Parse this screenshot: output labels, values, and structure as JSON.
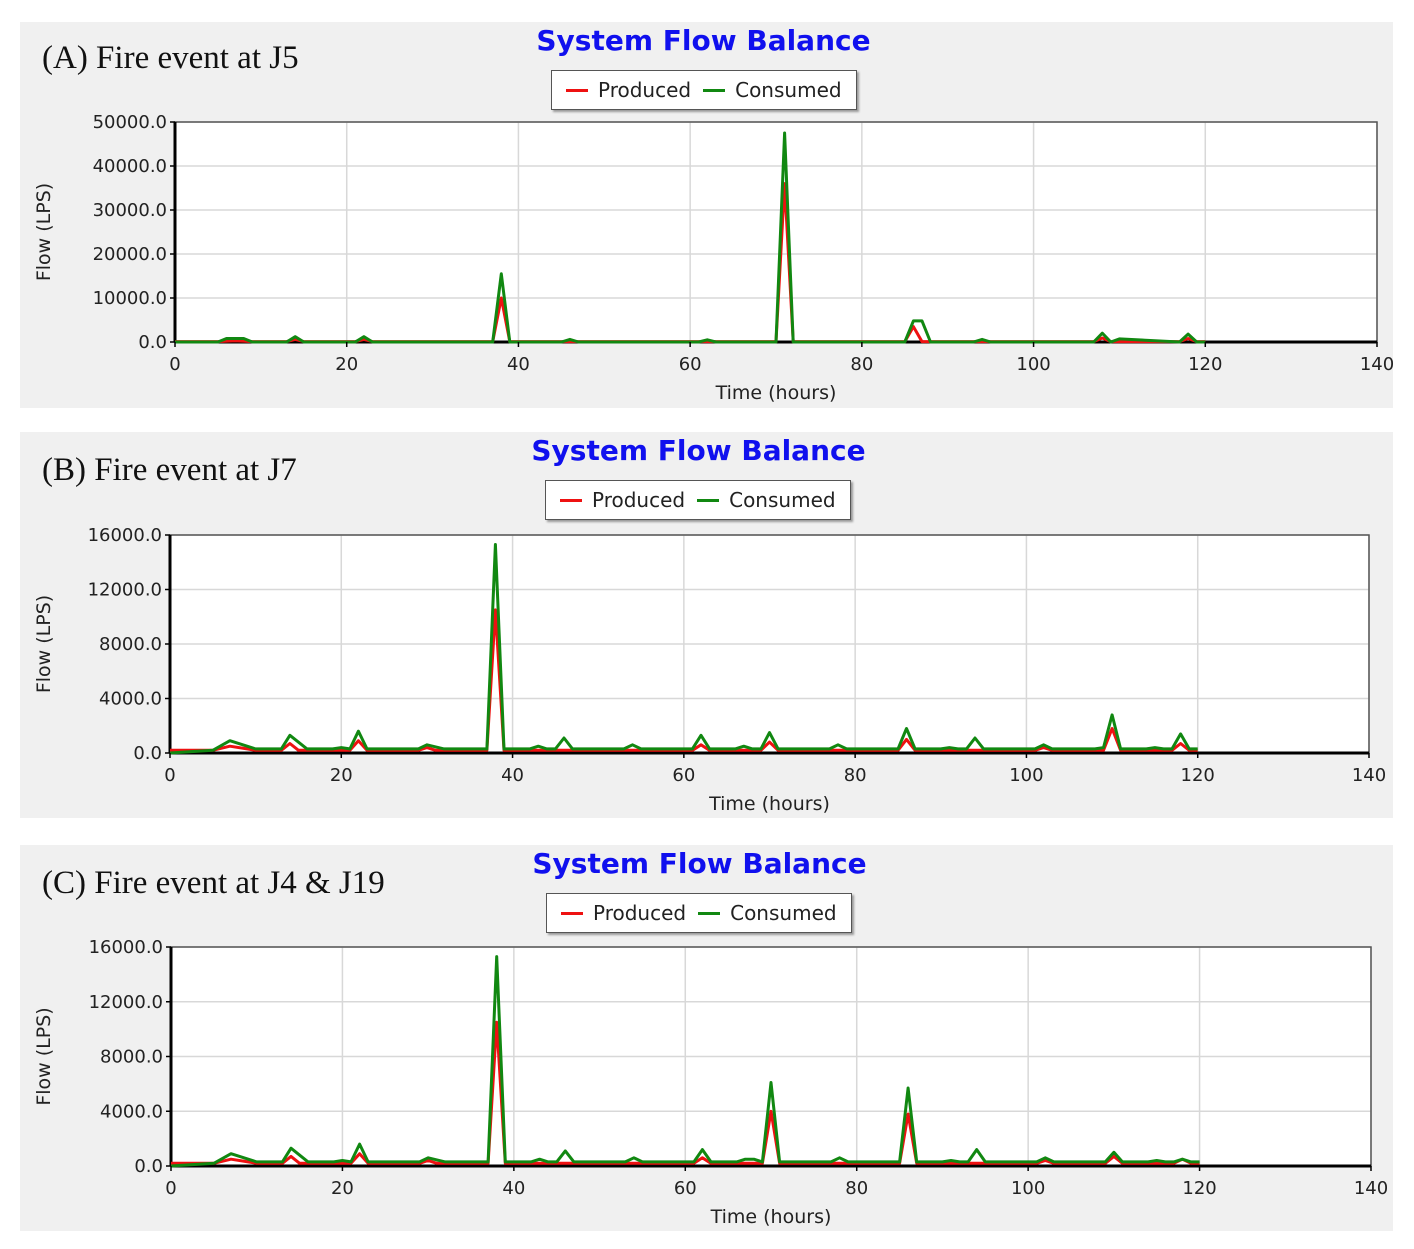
{
  "colors": {
    "produced": "#ee1111",
    "consumed": "#118811",
    "title": "#1010ee",
    "grid": "#d8d8d8",
    "panel_bg": "#f0f0f0"
  },
  "chart_data": [
    {
      "panel_label": "(A) Fire event at J5",
      "type": "line",
      "title": "System Flow Balance",
      "xlabel": "Time (hours)",
      "ylabel": "Flow (LPS)",
      "xlim": [
        0,
        140
      ],
      "ylim": [
        0,
        50000
      ],
      "xticks": [
        0,
        20,
        40,
        60,
        80,
        100,
        120,
        140
      ],
      "yticks": [
        0,
        10000,
        20000,
        30000,
        40000,
        50000
      ],
      "ytick_labels": [
        "0.0",
        "10000.0",
        "20000.0",
        "30000.0",
        "40000.0",
        "50000.0"
      ],
      "legend": {
        "placement": "top-center",
        "entries": [
          "Produced",
          "Consumed"
        ]
      },
      "grid": true,
      "series": [
        {
          "name": "Produced",
          "color": "#ee1111",
          "x": [
            0,
            5,
            6,
            7,
            8,
            9,
            13,
            14,
            15,
            21,
            22,
            23,
            37,
            38,
            39,
            70,
            71,
            72,
            85,
            86,
            87,
            107,
            108,
            109,
            117,
            118,
            119,
            120
          ],
          "y": [
            100,
            100,
            200,
            300,
            200,
            100,
            100,
            600,
            100,
            100,
            600,
            100,
            100,
            10000,
            100,
            100,
            36000,
            100,
            100,
            3500,
            100,
            100,
            900,
            100,
            100,
            800,
            100,
            100
          ]
        },
        {
          "name": "Consumed",
          "color": "#118811",
          "x": [
            0,
            5,
            6,
            8,
            9,
            13,
            14,
            15,
            21,
            22,
            23,
            37,
            38,
            39,
            45,
            46,
            47,
            61,
            62,
            63,
            70,
            71,
            72,
            85,
            86,
            87,
            88,
            93,
            94,
            95,
            107,
            108,
            109,
            110,
            117,
            118,
            119,
            120
          ],
          "y": [
            0,
            0,
            800,
            800,
            0,
            0,
            1200,
            0,
            0,
            1200,
            0,
            0,
            15500,
            0,
            0,
            600,
            0,
            0,
            500,
            0,
            0,
            47500,
            0,
            0,
            4800,
            4800,
            0,
            0,
            600,
            0,
            0,
            2000,
            0,
            700,
            0,
            1800,
            0,
            0
          ]
        }
      ]
    },
    {
      "panel_label": "(B) Fire event at J7",
      "type": "line",
      "title": "System Flow Balance",
      "xlabel": "Time (hours)",
      "ylabel": "Flow (LPS)",
      "xlim": [
        0,
        140
      ],
      "ylim": [
        0,
        16000
      ],
      "xticks": [
        0,
        20,
        40,
        60,
        80,
        100,
        120,
        140
      ],
      "yticks": [
        0,
        4000,
        8000,
        12000,
        16000
      ],
      "ytick_labels": [
        "0.0",
        "4000.0",
        "8000.0",
        "12000.0",
        "16000.0"
      ],
      "legend": {
        "placement": "top-center",
        "entries": [
          "Produced",
          "Consumed"
        ]
      },
      "grid": true,
      "series": [
        {
          "name": "Produced",
          "color": "#ee1111",
          "x": [
            0,
            5,
            7,
            9,
            10,
            13,
            14,
            15,
            21,
            22,
            23,
            29,
            30,
            31,
            37,
            38,
            39,
            61,
            62,
            63,
            69,
            70,
            71,
            85,
            86,
            87,
            101,
            102,
            103,
            109,
            110,
            111,
            117,
            118,
            119,
            120
          ],
          "y": [
            200,
            200,
            500,
            300,
            200,
            200,
            700,
            200,
            200,
            900,
            200,
            200,
            400,
            200,
            200,
            10500,
            200,
            200,
            600,
            200,
            200,
            800,
            200,
            200,
            1000,
            200,
            200,
            400,
            200,
            200,
            1800,
            200,
            200,
            700,
            200,
            200
          ]
        },
        {
          "name": "Consumed",
          "color": "#118811",
          "x": [
            0,
            5,
            7,
            10,
            13,
            14,
            16,
            19,
            20,
            21,
            22,
            23,
            29,
            30,
            32,
            37,
            38,
            39,
            42,
            43,
            44,
            45,
            46,
            47,
            53,
            54,
            55,
            61,
            62,
            63,
            66,
            67,
            68,
            69,
            70,
            71,
            77,
            78,
            79,
            85,
            86,
            87,
            90,
            91,
            92,
            93,
            94,
            95,
            101,
            102,
            103,
            108,
            109,
            110,
            111,
            114,
            115,
            116,
            117,
            118,
            119,
            120
          ],
          "y": [
            0,
            200,
            900,
            300,
            300,
            1300,
            300,
            300,
            400,
            300,
            1600,
            300,
            300,
            600,
            300,
            300,
            15300,
            300,
            300,
            500,
            300,
            300,
            1100,
            300,
            300,
            600,
            300,
            300,
            1300,
            300,
            300,
            500,
            300,
            300,
            1500,
            300,
            300,
            600,
            300,
            300,
            1800,
            300,
            300,
            400,
            300,
            300,
            1100,
            300,
            300,
            600,
            300,
            300,
            400,
            2800,
            300,
            300,
            400,
            300,
            300,
            1400,
            300,
            300
          ]
        }
      ]
    },
    {
      "panel_label": "(C) Fire event at J4 & J19",
      "type": "line",
      "title": "System Flow Balance",
      "xlabel": "Time (hours)",
      "ylabel": "Flow (LPS)",
      "xlim": [
        0,
        140
      ],
      "ylim": [
        0,
        16000
      ],
      "xticks": [
        0,
        20,
        40,
        60,
        80,
        100,
        120,
        140
      ],
      "yticks": [
        0,
        4000,
        8000,
        12000,
        16000
      ],
      "ytick_labels": [
        "0.0",
        "4000.0",
        "8000.0",
        "12000.0",
        "16000.0"
      ],
      "legend": {
        "placement": "top-center",
        "entries": [
          "Produced",
          "Consumed"
        ]
      },
      "grid": true,
      "series": [
        {
          "name": "Produced",
          "color": "#ee1111",
          "x": [
            0,
            5,
            7,
            9,
            10,
            13,
            14,
            15,
            21,
            22,
            23,
            29,
            30,
            31,
            37,
            38,
            39,
            61,
            62,
            63,
            69,
            70,
            71,
            85,
            86,
            87,
            101,
            102,
            103,
            109,
            110,
            111,
            117,
            118,
            119,
            120
          ],
          "y": [
            200,
            200,
            500,
            300,
            200,
            200,
            700,
            200,
            200,
            900,
            200,
            200,
            400,
            200,
            200,
            10500,
            200,
            200,
            600,
            200,
            200,
            4000,
            200,
            200,
            3800,
            200,
            200,
            400,
            200,
            200,
            700,
            200,
            200,
            500,
            200,
            200
          ]
        },
        {
          "name": "Consumed",
          "color": "#118811",
          "x": [
            0,
            5,
            7,
            10,
            13,
            14,
            16,
            19,
            20,
            21,
            22,
            23,
            29,
            30,
            32,
            37,
            38,
            39,
            42,
            43,
            44,
            45,
            46,
            47,
            53,
            54,
            55,
            61,
            62,
            63,
            66,
            67,
            68,
            69,
            70,
            71,
            77,
            78,
            79,
            85,
            86,
            87,
            90,
            91,
            92,
            93,
            94,
            95,
            101,
            102,
            103,
            109,
            110,
            111,
            114,
            115,
            116,
            117,
            118,
            119,
            120
          ],
          "y": [
            0,
            200,
            900,
            300,
            300,
            1300,
            300,
            300,
            400,
            300,
            1600,
            300,
            300,
            600,
            300,
            300,
            15300,
            300,
            300,
            500,
            300,
            300,
            1100,
            300,
            300,
            600,
            300,
            300,
            1200,
            300,
            300,
            500,
            500,
            300,
            6100,
            300,
            300,
            600,
            300,
            300,
            5700,
            300,
            300,
            400,
            300,
            300,
            1200,
            300,
            300,
            600,
            300,
            300,
            1000,
            300,
            300,
            400,
            300,
            300,
            500,
            300,
            300
          ]
        }
      ]
    }
  ]
}
